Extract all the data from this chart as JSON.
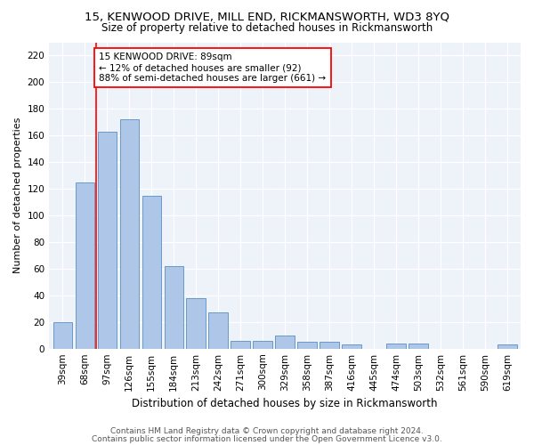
{
  "title1": "15, KENWOOD DRIVE, MILL END, RICKMANSWORTH, WD3 8YQ",
  "title2": "Size of property relative to detached houses in Rickmansworth",
  "xlabel": "Distribution of detached houses by size in Rickmansworth",
  "ylabel": "Number of detached properties",
  "categories": [
    "39sqm",
    "68sqm",
    "97sqm",
    "126sqm",
    "155sqm",
    "184sqm",
    "213sqm",
    "242sqm",
    "271sqm",
    "300sqm",
    "329sqm",
    "358sqm",
    "387sqm",
    "416sqm",
    "445sqm",
    "474sqm",
    "503sqm",
    "532sqm",
    "561sqm",
    "590sqm",
    "619sqm"
  ],
  "values": [
    20,
    125,
    163,
    172,
    115,
    62,
    38,
    27,
    6,
    6,
    10,
    5,
    5,
    3,
    0,
    4,
    4,
    0,
    0,
    0,
    3
  ],
  "bar_color": "#aec6e8",
  "bar_edge_color": "#5a8fc2",
  "vline_x_index": 1.5,
  "vline_color": "red",
  "annotation_text": "15 KENWOOD DRIVE: 89sqm\n← 12% of detached houses are smaller (92)\n88% of semi-detached houses are larger (661) →",
  "annotation_box_color": "white",
  "annotation_box_edge": "red",
  "ylim": [
    0,
    230
  ],
  "yticks": [
    0,
    20,
    40,
    60,
    80,
    100,
    120,
    140,
    160,
    180,
    200,
    220
  ],
  "footer1": "Contains HM Land Registry data © Crown copyright and database right 2024.",
  "footer2": "Contains public sector information licensed under the Open Government Licence v3.0.",
  "title1_fontsize": 9.5,
  "title2_fontsize": 8.5,
  "xlabel_fontsize": 8.5,
  "ylabel_fontsize": 8,
  "tick_fontsize": 7.5,
  "annotation_fontsize": 7.5,
  "footer_fontsize": 6.5,
  "bg_color": "#eef2f9"
}
